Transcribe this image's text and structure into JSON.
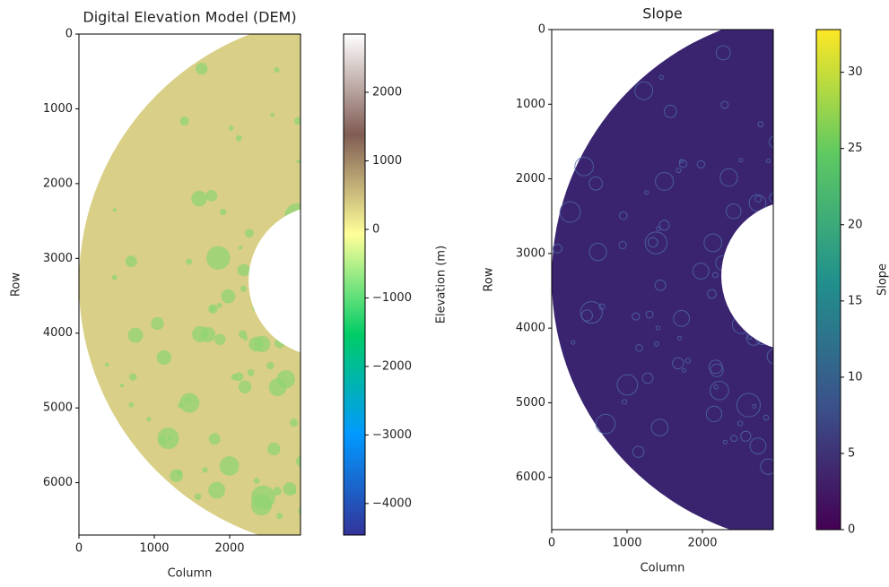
{
  "chart_data": [
    {
      "type": "image",
      "title": "Digital Elevation Model (DEM)",
      "x_label": "Column",
      "y_label": "Row",
      "xlim": [
        0,
        2940
      ],
      "ylim": [
        6700,
        0
      ],
      "xticks": [
        0,
        1000,
        2000
      ],
      "yticks": [
        0,
        1000,
        2000,
        3000,
        4000,
        5000,
        6000
      ],
      "image_color": "#d9cf86",
      "feature_color": "#8fd474",
      "colorbar": {
        "label": "Elevation (m)",
        "lim": [
          -4460,
          2850
        ],
        "ticks": [
          {
            "value": -4000,
            "label": "−4000"
          },
          {
            "value": -3000,
            "label": "−3000"
          },
          {
            "value": -2000,
            "label": "−2000"
          },
          {
            "value": -1000,
            "label": "−1000"
          },
          0,
          1000,
          2000
        ],
        "colors": [
          "#333399",
          "#0199ff",
          "#00cc66",
          "#ffff99",
          "#805c54",
          "#ffffff"
        ]
      }
    },
    {
      "type": "image",
      "title": "Slope",
      "x_label": "Column",
      "y_label": "Row",
      "xlim": [
        0,
        2940
      ],
      "ylim": [
        6700,
        0
      ],
      "xticks": [
        0,
        1000,
        2000
      ],
      "yticks": [
        0,
        1000,
        2000,
        3000,
        4000,
        5000,
        6000
      ],
      "image_color": "#3a2470",
      "feature_color": "#4f6aa8",
      "colorbar": {
        "label": "Slope",
        "lim": [
          0,
          32.8
        ],
        "ticks": [
          0,
          5,
          10,
          15,
          20,
          25,
          30
        ],
        "colors": [
          "#440154",
          "#3b528b",
          "#21918c",
          "#5ec962",
          "#fde725"
        ]
      }
    }
  ]
}
